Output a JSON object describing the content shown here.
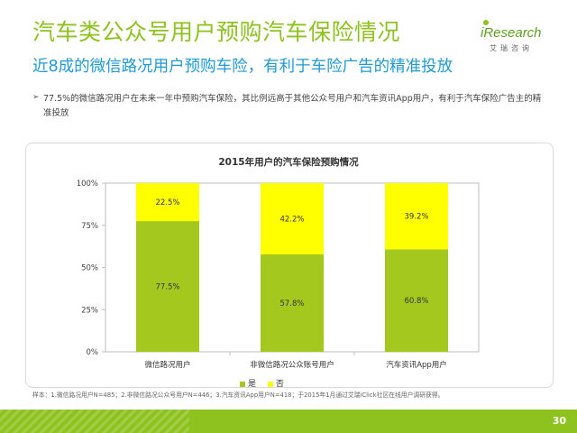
{
  "header": {
    "title": "汽车类公众号用户预购汽车保险情况",
    "subtitle": "近8成的微信路况用户预购车险，有利于车险广告的精准投放"
  },
  "logo": {
    "main": "iResearch",
    "sub": "艾瑞咨询"
  },
  "bullet": {
    "arrow": "➢",
    "text": "77.5%的微信路况用户在未来一年中预购汽车保险，其比例远高于其他公众号用户和汽车资讯App用户，有利于汽车保险广告主的精准投放"
  },
  "chart_data": {
    "type": "bar",
    "stacked": true,
    "title": "2015年用户的汽车保险预购情况",
    "categories": [
      "微信路况用户",
      "非微信路况公众账号用户",
      "汽车资讯App用户"
    ],
    "series": [
      {
        "name": "是",
        "values": [
          77.5,
          57.8,
          60.8
        ],
        "labels": [
          "77.5%",
          "57.8%",
          "60.8%"
        ],
        "color": "#a5c81f"
      },
      {
        "name": "否",
        "values": [
          22.5,
          42.2,
          39.2
        ],
        "labels": [
          "22.5%",
          "42.2%",
          "39.2%"
        ],
        "color": "#ffff00"
      }
    ],
    "yticks": [
      "0%",
      "25%",
      "50%",
      "75%",
      "100%"
    ],
    "ylim": [
      0,
      100
    ],
    "legend_position": "bottom"
  },
  "footnote": "样本：1.微信路况用户N=485；2.非微信路况公众号用户N=446；3.汽车资讯App用户N=418；于2015年1月通过艾瑞iClick社区在线用户调研获得。",
  "page": {
    "number": "30"
  },
  "colors": {
    "title": "#8dc21f",
    "subtitle": "#1f9ad6",
    "bar_yes": "#a5c81f",
    "bar_no": "#ffff00",
    "bottom_bar": "#8dc21f"
  }
}
